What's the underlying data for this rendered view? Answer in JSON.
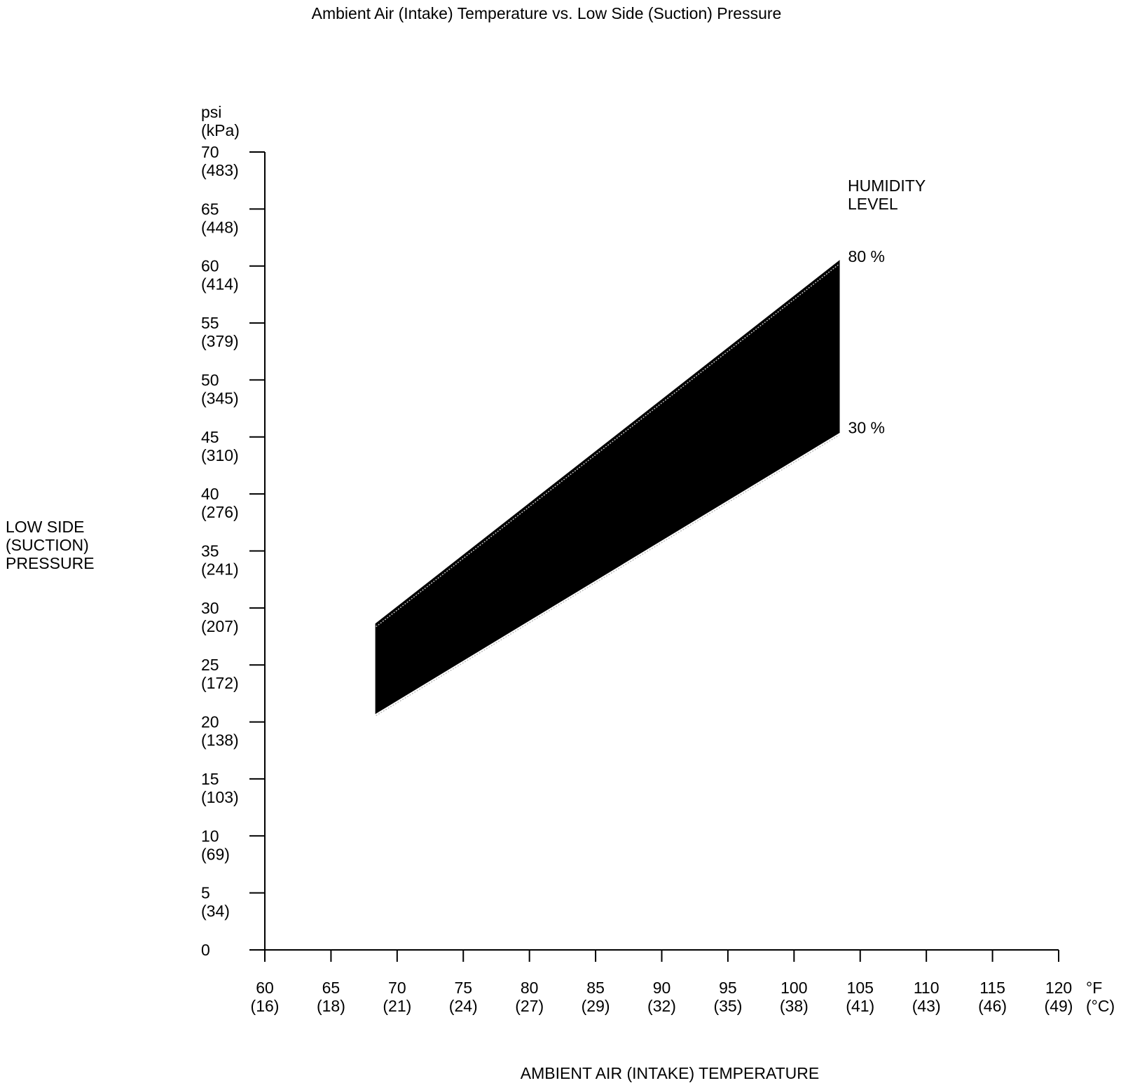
{
  "chart_data": {
    "type": "area",
    "title": "Ambient Air (Intake) Temperature vs. Low Side (Suction) Pressure",
    "xlabel": "AMBIENT AIR (INTAKE) TEMPERATURE",
    "ylabel_lines": [
      "LOW SIDE",
      "(SUCTION)",
      "PRESSURE"
    ],
    "y_unit_lines": [
      "psi",
      "(kPa)"
    ],
    "x_unit_lines": [
      "°F",
      "(°C)"
    ],
    "xlim": [
      60,
      120
    ],
    "ylim": [
      0,
      70
    ],
    "x_ticks": [
      {
        "value": 60,
        "label": "60",
        "sub": "(16)"
      },
      {
        "value": 65,
        "label": "65",
        "sub": "(18)"
      },
      {
        "value": 70,
        "label": "70",
        "sub": "(21)"
      },
      {
        "value": 75,
        "label": "75",
        "sub": "(24)"
      },
      {
        "value": 80,
        "label": "80",
        "sub": "(27)"
      },
      {
        "value": 85,
        "label": "85",
        "sub": "(29)"
      },
      {
        "value": 90,
        "label": "90",
        "sub": "(32)"
      },
      {
        "value": 95,
        "label": "95",
        "sub": "(35)"
      },
      {
        "value": 100,
        "label": "100",
        "sub": "(38)"
      },
      {
        "value": 105,
        "label": "105",
        "sub": "(41)"
      },
      {
        "value": 110,
        "label": "110",
        "sub": "(43)"
      },
      {
        "value": 115,
        "label": "115",
        "sub": "(46)"
      },
      {
        "value": 120,
        "label": "120",
        "sub": "(49)"
      }
    ],
    "y_ticks": [
      {
        "value": 0,
        "label": "0",
        "sub": ""
      },
      {
        "value": 5,
        "label": "5",
        "sub": "(34)"
      },
      {
        "value": 10,
        "label": "10",
        "sub": "(69)"
      },
      {
        "value": 15,
        "label": "15",
        "sub": "(103)"
      },
      {
        "value": 20,
        "label": "20",
        "sub": "(138)"
      },
      {
        "value": 25,
        "label": "25",
        "sub": "(172)"
      },
      {
        "value": 30,
        "label": "30",
        "sub": "(207)"
      },
      {
        "value": 35,
        "label": "35",
        "sub": "(241)"
      },
      {
        "value": 40,
        "label": "40",
        "sub": "(276)"
      },
      {
        "value": 45,
        "label": "45",
        "sub": "(310)"
      },
      {
        "value": 50,
        "label": "50",
        "sub": "(345)"
      },
      {
        "value": 55,
        "label": "55",
        "sub": "(379)"
      },
      {
        "value": 60,
        "label": "60",
        "sub": "(414)"
      },
      {
        "value": 65,
        "label": "65",
        "sub": "(448)"
      },
      {
        "value": 70,
        "label": "70",
        "sub": "(483)"
      }
    ],
    "series": [
      {
        "name": "80 %",
        "x": [
          68.4,
          103.4
        ],
        "y": [
          28.6,
          60.4
        ]
      },
      {
        "name": "30 %",
        "x": [
          68.4,
          103.4
        ],
        "y": [
          20.8,
          45.4
        ]
      }
    ],
    "legend_title_lines": [
      "HUMIDITY",
      "LEVEL"
    ],
    "band_color": "#000000",
    "grid": false
  }
}
